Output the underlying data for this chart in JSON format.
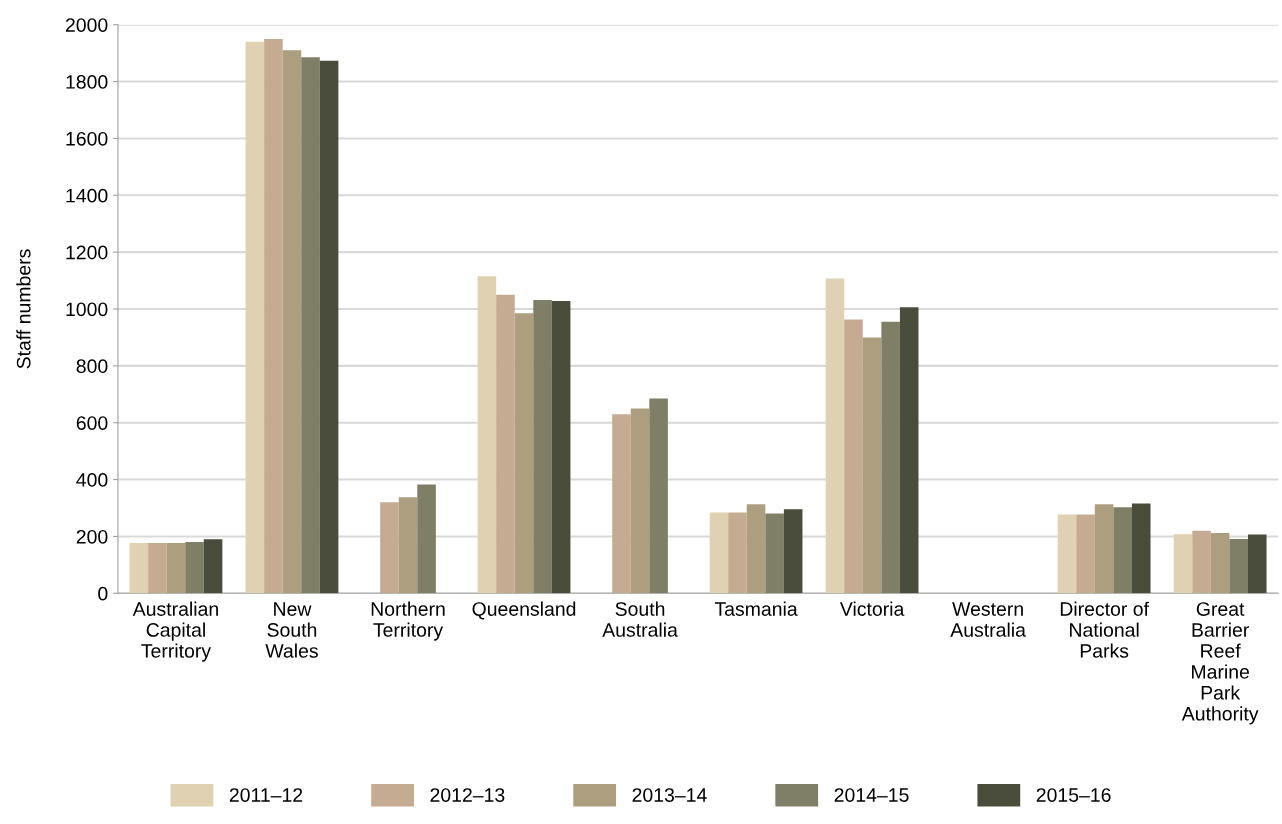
{
  "chart_data": {
    "type": "bar",
    "ylabel": "Staff numbers",
    "categories": [
      "Australian\nCapital\nTerritory",
      "New\nSouth\nWales",
      "Northern\nTerritory",
      "Queensland",
      "South\nAustralia",
      "Tasmania",
      "Victoria",
      "Western\nAustralia",
      "Director of\nNational\nParks",
      "Great\nBarrier\nReef\nMarine\nPark\nAuthority"
    ],
    "series": [
      {
        "name": "2011–12",
        "color": "#e0d1b2",
        "values": [
          177,
          1940,
          null,
          1115,
          null,
          284,
          1107,
          null,
          277,
          208
        ]
      },
      {
        "name": "2012–13",
        "color": "#c6ab93",
        "values": [
          177,
          1950,
          320,
          1050,
          630,
          284,
          963,
          null,
          277,
          220
        ]
      },
      {
        "name": "2013–14",
        "color": "#ad9e80",
        "values": [
          177,
          1910,
          338,
          985,
          650,
          313,
          900,
          null,
          313,
          212
        ]
      },
      {
        "name": "2014–15",
        "color": "#7e7f66",
        "values": [
          180,
          1886,
          383,
          1032,
          685,
          281,
          955,
          null,
          303,
          191
        ]
      },
      {
        "name": "2015–16",
        "color": "#4a4c3c",
        "values": [
          190,
          1873,
          null,
          1028,
          null,
          296,
          1006,
          null,
          316,
          207
        ]
      }
    ],
    "ylim": [
      0,
      2000
    ],
    "yticks": [
      0,
      200,
      400,
      600,
      800,
      1000,
      1200,
      1400,
      1600,
      1800,
      2000
    ],
    "grid": "y",
    "legend": "bottom"
  }
}
